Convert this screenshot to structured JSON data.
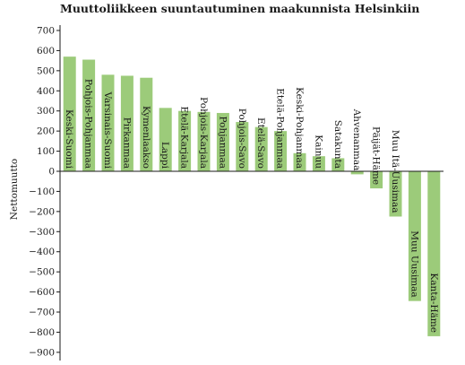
{
  "chart_data": {
    "type": "bar",
    "title": "Muuttoliikkeen suuntautuminen maakunnista Helsinkiin",
    "xlabel": "",
    "ylabel": "Nettomuutto",
    "ylim": [
      -900,
      700
    ],
    "yticks": [
      700,
      600,
      500,
      400,
      300,
      200,
      100,
      0,
      -100,
      -200,
      -300,
      -400,
      -500,
      -600,
      -700,
      -800,
      -900
    ],
    "ytick_labels": [
      "700",
      "600",
      "500",
      "400",
      "300",
      "200",
      "100",
      "0",
      "−100",
      "−200",
      "−300",
      "−400",
      "−500",
      "−600",
      "−700",
      "−800",
      "−900"
    ],
    "grid": false,
    "bar_color": "#9ccb7a",
    "categories": [
      "Keski-Suomi",
      "Pohjois-Pohjanmaa",
      "Varsinais-Suomi",
      "Pirkanmaa",
      "Kymenlaakso",
      "Lappi",
      "Etelä-Karjala",
      "Pohjois-Karjala",
      "Pohjanmaa",
      "Pohjois-Savo",
      "Etelä-Savo",
      "Etelä-Pohjanmaa",
      "Keski-Pohjanmaa",
      "Kainuu",
      "Satakunta",
      "Ahvenanmaa",
      "Päijät-Häme",
      "Muu Itä-Uusimaa",
      "Muu Uusimaa",
      "Kanta-Häme"
    ],
    "values": [
      570,
      555,
      480,
      475,
      465,
      315,
      300,
      295,
      290,
      245,
      220,
      200,
      90,
      75,
      65,
      -15,
      -85,
      -225,
      -645,
      -820
    ]
  }
}
